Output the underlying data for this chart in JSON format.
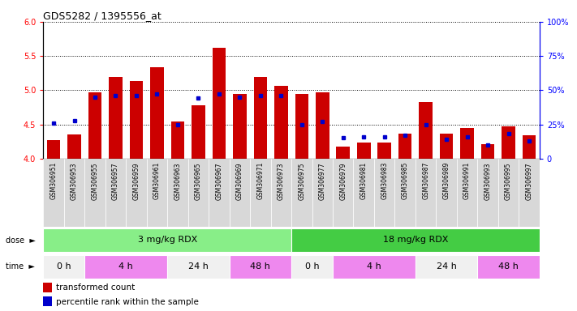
{
  "title": "GDS5282 / 1395556_at",
  "samples": [
    "GSM306951",
    "GSM306953",
    "GSM306955",
    "GSM306957",
    "GSM306959",
    "GSM306961",
    "GSM306963",
    "GSM306965",
    "GSM306967",
    "GSM306969",
    "GSM306971",
    "GSM306973",
    "GSM306975",
    "GSM306977",
    "GSM306979",
    "GSM306981",
    "GSM306983",
    "GSM306985",
    "GSM306987",
    "GSM306989",
    "GSM306991",
    "GSM306993",
    "GSM306995",
    "GSM306997"
  ],
  "bar_values": [
    4.27,
    4.35,
    4.97,
    5.19,
    5.14,
    5.33,
    4.54,
    4.78,
    5.62,
    4.94,
    5.19,
    5.06,
    4.95,
    4.97,
    4.18,
    4.24,
    4.23,
    4.36,
    4.83,
    4.37,
    4.45,
    4.21,
    4.47,
    4.34
  ],
  "percentile_values": [
    26,
    28,
    45,
    46,
    46,
    47,
    25,
    44,
    47,
    45,
    46,
    46,
    25,
    27,
    15,
    16,
    16,
    17,
    25,
    14,
    16,
    10,
    18,
    13
  ],
  "ylim_left": [
    4.0,
    6.0
  ],
  "ylim_right": [
    0,
    100
  ],
  "yticks_left": [
    4.0,
    4.5,
    5.0,
    5.5,
    6.0
  ],
  "yticks_right": [
    0,
    25,
    50,
    75,
    100
  ],
  "bar_color": "#cc0000",
  "percentile_color": "#0000cc",
  "doses": [
    {
      "label": "3 mg/kg RDX",
      "start": 0,
      "end": 11,
      "color": "#88ee88"
    },
    {
      "label": "18 mg/kg RDX",
      "start": 12,
      "end": 23,
      "color": "#44cc44"
    }
  ],
  "times": [
    {
      "label": "0 h",
      "start": 0,
      "end": 1,
      "color": "#f0f0f0"
    },
    {
      "label": "4 h",
      "start": 2,
      "end": 5,
      "color": "#ee88ee"
    },
    {
      "label": "24 h",
      "start": 6,
      "end": 8,
      "color": "#f0f0f0"
    },
    {
      "label": "48 h",
      "start": 9,
      "end": 11,
      "color": "#ee88ee"
    },
    {
      "label": "0 h",
      "start": 12,
      "end": 13,
      "color": "#f0f0f0"
    },
    {
      "label": "4 h",
      "start": 14,
      "end": 17,
      "color": "#ee88ee"
    },
    {
      "label": "24 h",
      "start": 18,
      "end": 20,
      "color": "#f0f0f0"
    },
    {
      "label": "48 h",
      "start": 21,
      "end": 23,
      "color": "#ee88ee"
    }
  ],
  "dose_label": "dose",
  "time_label": "time",
  "legend": [
    "transformed count",
    "percentile rank within the sample"
  ]
}
